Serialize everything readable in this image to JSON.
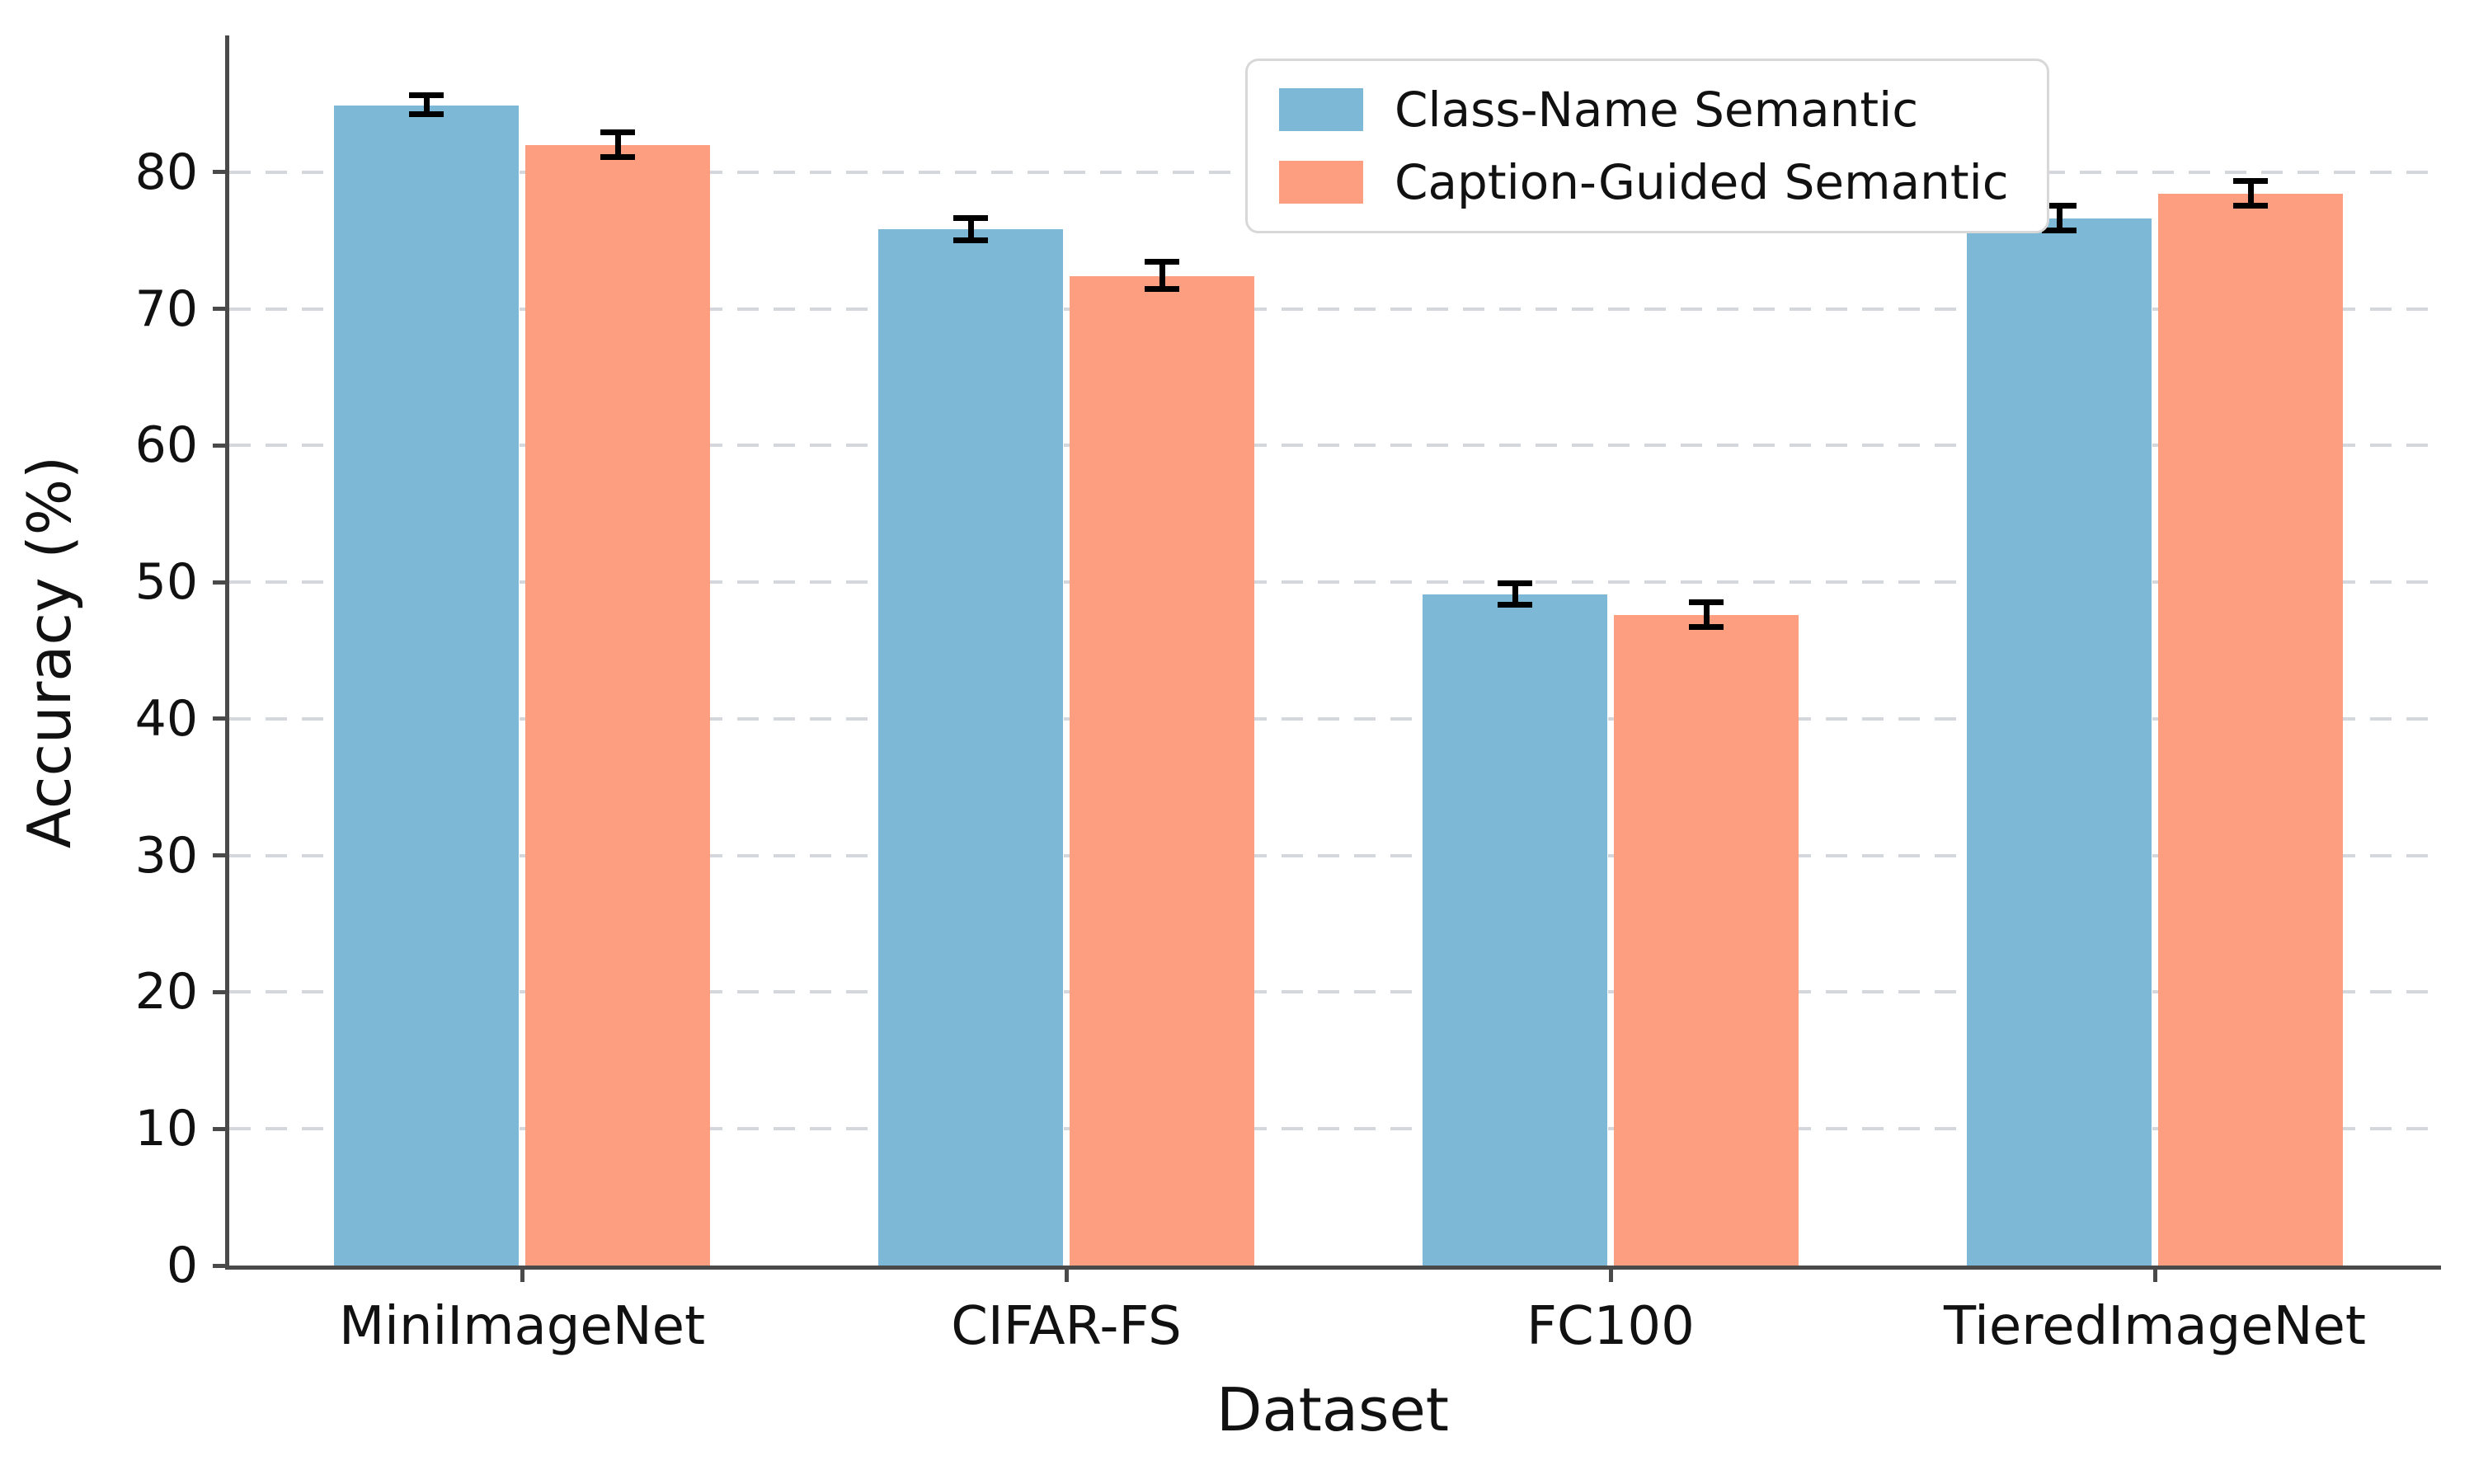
{
  "chart_data": {
    "type": "bar",
    "title": "",
    "xlabel": "Dataset",
    "ylabel": "Accuracy (%)",
    "categories": [
      "MiniImageNet",
      "CIFAR-FS",
      "FC100",
      "TieredImageNet"
    ],
    "series": [
      {
        "name": "Class-Name Semantic",
        "color": "#7DB9D7",
        "values": [
          84.9,
          75.8,
          49.1,
          76.6
        ],
        "errors": [
          0.7,
          0.8,
          0.8,
          0.9
        ]
      },
      {
        "name": "Caption-Guided Semantic",
        "color": "#FD9E80",
        "values": [
          82.0,
          72.4,
          47.6,
          78.4
        ],
        "errors": [
          0.9,
          1.0,
          0.9,
          0.9
        ]
      }
    ],
    "ylim": [
      0,
      90
    ],
    "yticks": [
      0,
      10,
      20,
      30,
      40,
      50,
      60,
      70,
      80
    ],
    "grid": "horizontal-dashed",
    "legend_position": "upper right",
    "style": {
      "grid_color": "#d4d8dc",
      "spine_color": "#4a4a4a",
      "errorbar_color": "#000000",
      "background": "#ffffff",
      "legend_border_color": "#d8d8d8"
    }
  }
}
